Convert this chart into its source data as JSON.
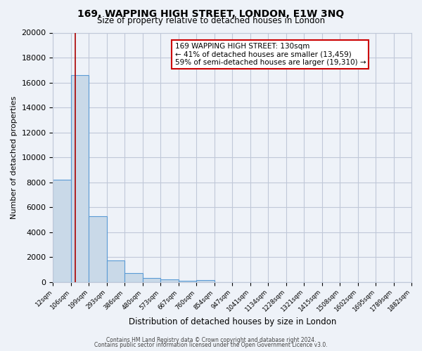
{
  "title": "169, WAPPING HIGH STREET, LONDON, E1W 3NQ",
  "subtitle": "Size of property relative to detached houses in London",
  "xlabel": "Distribution of detached houses by size in London",
  "ylabel": "Number of detached properties",
  "bin_labels": [
    "12sqm",
    "106sqm",
    "199sqm",
    "293sqm",
    "386sqm",
    "480sqm",
    "573sqm",
    "667sqm",
    "760sqm",
    "854sqm",
    "947sqm",
    "1041sqm",
    "1134sqm",
    "1228sqm",
    "1321sqm",
    "1415sqm",
    "1508sqm",
    "1602sqm",
    "1695sqm",
    "1789sqm",
    "1882sqm"
  ],
  "bar_heights": [
    8200,
    16600,
    5300,
    1750,
    700,
    300,
    200,
    120,
    150,
    0,
    0,
    0,
    0,
    0,
    0,
    0,
    0,
    0,
    0,
    0
  ],
  "bar_color": "#c9d9e8",
  "bar_edge_color": "#5b9bd5",
  "grid_color": "#c0c8d8",
  "background_color": "#eef2f8",
  "annotation_text1": "169 WAPPING HIGH STREET: 130sqm",
  "annotation_text2": "← 41% of detached houses are smaller (13,459)",
  "annotation_text3": "59% of semi-detached houses are larger (19,310) →",
  "annotation_box_color": "#ffffff",
  "annotation_box_edge": "#cc0000",
  "red_line_color": "#aa0000",
  "ylim": [
    0,
    20000
  ],
  "yticks": [
    0,
    2000,
    4000,
    6000,
    8000,
    10000,
    12000,
    14000,
    16000,
    18000,
    20000
  ],
  "footer1": "Contains HM Land Registry data © Crown copyright and database right 2024.",
  "footer2": "Contains public sector information licensed under the Open Government Licence v3.0."
}
